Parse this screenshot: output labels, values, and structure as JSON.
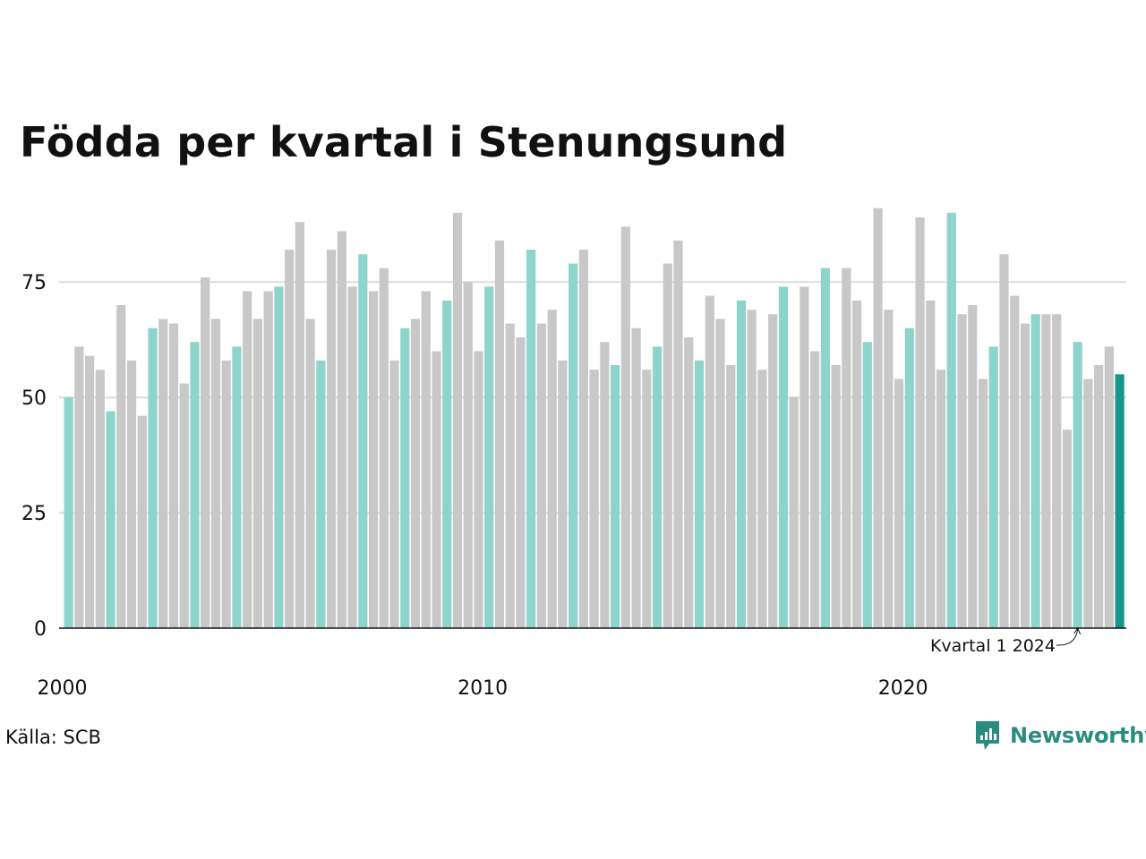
{
  "title": "Födda per kvartal i Stenungsund",
  "source": "Källa: SCB",
  "brand": {
    "name": "Newsworthy",
    "icon": "newsworthy-logo-icon",
    "color": "#2a8c7f"
  },
  "chart_data": {
    "type": "bar",
    "title": "Födda per kvartal i Stenungsund",
    "xlabel": "",
    "ylabel": "",
    "ylim": [
      0,
      95
    ],
    "yticks": [
      0,
      25,
      50,
      75
    ],
    "xticks": [
      {
        "label": "2000",
        "year": 2000
      },
      {
        "label": "2010",
        "year": 2010
      },
      {
        "label": "2020",
        "year": 2020
      }
    ],
    "grid": true,
    "start": {
      "year": 2000,
      "quarter": 1
    },
    "values": [
      50,
      61,
      59,
      56,
      47,
      70,
      58,
      46,
      65,
      67,
      66,
      53,
      62,
      76,
      67,
      58,
      61,
      73,
      67,
      73,
      74,
      82,
      88,
      67,
      58,
      82,
      86,
      74,
      81,
      73,
      78,
      58,
      65,
      67,
      73,
      60,
      71,
      90,
      75,
      60,
      74,
      84,
      66,
      63,
      82,
      66,
      69,
      58,
      79,
      82,
      56,
      62,
      57,
      87,
      65,
      56,
      61,
      79,
      84,
      63,
      58,
      72,
      67,
      57,
      71,
      69,
      56,
      68,
      74,
      50,
      74,
      60,
      78,
      57,
      78,
      71,
      62,
      91,
      69,
      54,
      65,
      89,
      71,
      56,
      90,
      68,
      70,
      54,
      61,
      81,
      72,
      66,
      68,
      68,
      68,
      43,
      62,
      54,
      57,
      61,
      55
    ],
    "colors": {
      "q1": "#8dd4cc",
      "other": "#c8c8c8",
      "latest": "#16958a",
      "axis": "#111111",
      "grid": "#e2e2e2"
    },
    "annotation": {
      "label": "Kvartal 1 2024",
      "year": 2024,
      "quarter": 1
    }
  }
}
